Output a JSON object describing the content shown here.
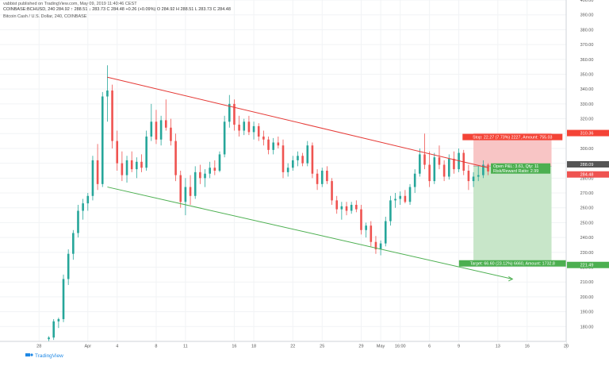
{
  "header": {
    "published_line": "vabbist published on TradingView.com, May 09, 2019 11:40:46 CEST",
    "ohlc_line": "COINBASE:BCHUSD, 240  284.92  ↑ 288.51  ↓ 283.73  C 284.48  +0.26 (+0.09%)  O 284.92  H 288.51  L 283.73  C 284.48",
    "instrument_line": "Bitcoin Cash / U.S. Dollar, 240, COINBASE"
  },
  "footer": {
    "brand": "TradingView"
  },
  "colors": {
    "up": "#26a69a",
    "down": "#ef5350",
    "resistance": "#e53935",
    "support": "#4caf50",
    "stop_zone": "#f8c5c5",
    "target_zone": "#c8e6c9",
    "stop_label": "#f44336",
    "target_label": "#4caf50",
    "last_price": "#ef5350",
    "open_price": "#555555"
  },
  "chart_data": {
    "type": "candlestick",
    "ylim": [
      170,
      400
    ],
    "y_ticks": [
      180,
      190,
      200,
      210,
      220,
      230,
      240,
      250,
      260,
      270,
      280,
      290,
      300,
      310,
      320,
      330,
      340,
      350,
      360,
      370,
      380,
      390,
      400
    ],
    "x_ticks": [
      {
        "label": "28",
        "day": -4
      },
      {
        "label": "Apr",
        "day": 1
      },
      {
        "label": "4",
        "day": 4
      },
      {
        "label": "8",
        "day": 8
      },
      {
        "label": "11",
        "day": 11
      },
      {
        "label": "16",
        "day": 16
      },
      {
        "label": "18",
        "day": 18
      },
      {
        "label": "22",
        "day": 22
      },
      {
        "label": "25",
        "day": 25
      },
      {
        "label": "29",
        "day": 29
      },
      {
        "label": "May",
        "day": 31
      },
      {
        "label": "16:00",
        "day": 33
      },
      {
        "label": "6",
        "day": 36
      },
      {
        "label": "9",
        "day": 39
      },
      {
        "label": "13",
        "day": 43
      },
      {
        "label": "16",
        "day": 46
      },
      {
        "label": "20",
        "day": 50
      }
    ],
    "x_range": [
      -8,
      50
    ],
    "trendlines": [
      {
        "role": "resistance",
        "from": {
          "day": 3.0,
          "price": 348
        },
        "to": {
          "day": 42.0,
          "price": 287
        }
      },
      {
        "role": "support",
        "from": {
          "day": 3.0,
          "price": 274
        },
        "to": {
          "day": 44.5,
          "price": 212
        }
      }
    ],
    "position": {
      "start_day": 40.5,
      "end_day": 48.5,
      "entry": 288.09,
      "stop": 310.36,
      "target": 221.49,
      "stop_label": "Stop: 22.27 (7.73%) 2227, Amount: 755.03",
      "target_label": "Target: 66.60 (23.12%) 6660, Amount: 1732.8",
      "pnl_label": "Open P&L: 3.61, Qty: 11",
      "ratio_label": "Risk/Reward Ratio: 2.99"
    },
    "price_labels": {
      "stop": "310.36",
      "entry": "288.09",
      "last": "284.48",
      "target": "221.49"
    },
    "candles": [
      {
        "t": -3.0,
        "o": 171.5,
        "h": 173.5,
        "l": 168.5,
        "c": 172.6
      },
      {
        "t": -2.5,
        "o": 172.6,
        "h": 185.0,
        "l": 171.0,
        "c": 183.5
      },
      {
        "t": -2.0,
        "o": 183.5,
        "h": 186.0,
        "l": 179.0,
        "c": 185.0
      },
      {
        "t": -1.5,
        "o": 185.0,
        "h": 215.0,
        "l": 183.0,
        "c": 212.0
      },
      {
        "t": -1.0,
        "o": 212.0,
        "h": 232.0,
        "l": 208.0,
        "c": 229.0
      },
      {
        "t": -0.5,
        "o": 229.0,
        "h": 245.0,
        "l": 225.0,
        "c": 243.0
      },
      {
        "t": 0.0,
        "o": 243.0,
        "h": 262.0,
        "l": 240.0,
        "c": 258.0
      },
      {
        "t": 0.5,
        "o": 258.0,
        "h": 266.0,
        "l": 252.0,
        "c": 263.0
      },
      {
        "t": 1.0,
        "o": 263.0,
        "h": 270.0,
        "l": 258.0,
        "c": 268.0
      },
      {
        "t": 1.5,
        "o": 268.0,
        "h": 295.0,
        "l": 265.0,
        "c": 292.0
      },
      {
        "t": 2.0,
        "o": 292.0,
        "h": 303.0,
        "l": 272.0,
        "c": 276.0
      },
      {
        "t": 2.5,
        "o": 276.0,
        "h": 338.0,
        "l": 274.0,
        "c": 335.0
      },
      {
        "t": 3.0,
        "o": 335.0,
        "h": 356.0,
        "l": 318.0,
        "c": 339.0
      },
      {
        "t": 3.5,
        "o": 339.0,
        "h": 343.0,
        "l": 300.0,
        "c": 305.0
      },
      {
        "t": 4.0,
        "o": 305.0,
        "h": 312.0,
        "l": 285.0,
        "c": 290.0
      },
      {
        "t": 4.5,
        "o": 290.0,
        "h": 298.0,
        "l": 278.0,
        "c": 282.0
      },
      {
        "t": 5.0,
        "o": 282.0,
        "h": 295.0,
        "l": 277.0,
        "c": 292.0
      },
      {
        "t": 5.5,
        "o": 292.0,
        "h": 298.0,
        "l": 284.0,
        "c": 286.0
      },
      {
        "t": 6.0,
        "o": 286.0,
        "h": 294.0,
        "l": 280.0,
        "c": 291.0
      },
      {
        "t": 6.5,
        "o": 291.0,
        "h": 296.0,
        "l": 284.0,
        "c": 287.0
      },
      {
        "t": 7.0,
        "o": 287.0,
        "h": 312.0,
        "l": 285.0,
        "c": 308.0
      },
      {
        "t": 7.5,
        "o": 308.0,
        "h": 330.0,
        "l": 305.0,
        "c": 318.0
      },
      {
        "t": 8.0,
        "o": 318.0,
        "h": 326.0,
        "l": 303.0,
        "c": 306.0
      },
      {
        "t": 8.5,
        "o": 306.0,
        "h": 322.0,
        "l": 302.0,
        "c": 319.0
      },
      {
        "t": 9.0,
        "o": 319.0,
        "h": 333.0,
        "l": 312.0,
        "c": 314.0
      },
      {
        "t": 9.5,
        "o": 314.0,
        "h": 320.0,
        "l": 302.0,
        "c": 305.0
      },
      {
        "t": 10.0,
        "o": 305.0,
        "h": 310.0,
        "l": 278.0,
        "c": 282.0
      },
      {
        "t": 10.5,
        "o": 282.0,
        "h": 285.0,
        "l": 260.0,
        "c": 264.0
      },
      {
        "t": 11.0,
        "o": 264.0,
        "h": 280.0,
        "l": 255.0,
        "c": 274.0
      },
      {
        "t": 11.5,
        "o": 274.0,
        "h": 282.0,
        "l": 262.0,
        "c": 268.0
      },
      {
        "t": 12.0,
        "o": 268.0,
        "h": 288.0,
        "l": 266.0,
        "c": 284.0
      },
      {
        "t": 12.5,
        "o": 284.0,
        "h": 289.0,
        "l": 276.0,
        "c": 280.0
      },
      {
        "t": 13.0,
        "o": 280.0,
        "h": 286.0,
        "l": 274.0,
        "c": 283.0
      },
      {
        "t": 13.5,
        "o": 283.0,
        "h": 291.0,
        "l": 280.0,
        "c": 287.0
      },
      {
        "t": 14.0,
        "o": 287.0,
        "h": 292.0,
        "l": 282.0,
        "c": 285.0
      },
      {
        "t": 14.5,
        "o": 285.0,
        "h": 298.0,
        "l": 284.0,
        "c": 296.0
      },
      {
        "t": 15.0,
        "o": 296.0,
        "h": 322.0,
        "l": 294.0,
        "c": 318.0
      },
      {
        "t": 15.5,
        "o": 318.0,
        "h": 336.0,
        "l": 314.0,
        "c": 330.0
      },
      {
        "t": 16.0,
        "o": 330.0,
        "h": 333.0,
        "l": 312.0,
        "c": 316.0
      },
      {
        "t": 16.5,
        "o": 316.0,
        "h": 322.0,
        "l": 308.0,
        "c": 312.0
      },
      {
        "t": 17.0,
        "o": 312.0,
        "h": 320.0,
        "l": 309.0,
        "c": 318.0
      },
      {
        "t": 17.5,
        "o": 318.0,
        "h": 322.0,
        "l": 309.0,
        "c": 311.0
      },
      {
        "t": 18.0,
        "o": 311.0,
        "h": 318.0,
        "l": 306.0,
        "c": 315.0
      },
      {
        "t": 18.5,
        "o": 315.0,
        "h": 317.0,
        "l": 305.0,
        "c": 308.0
      },
      {
        "t": 19.0,
        "o": 308.0,
        "h": 312.0,
        "l": 302.0,
        "c": 306.0
      },
      {
        "t": 19.5,
        "o": 306.0,
        "h": 308.0,
        "l": 296.0,
        "c": 299.0
      },
      {
        "t": 20.0,
        "o": 299.0,
        "h": 307.0,
        "l": 296.0,
        "c": 304.0
      },
      {
        "t": 20.5,
        "o": 304.0,
        "h": 308.0,
        "l": 300.0,
        "c": 302.0
      },
      {
        "t": 21.0,
        "o": 302.0,
        "h": 306.0,
        "l": 280.0,
        "c": 284.0
      },
      {
        "t": 21.5,
        "o": 284.0,
        "h": 290.0,
        "l": 281.0,
        "c": 287.0
      },
      {
        "t": 22.0,
        "o": 287.0,
        "h": 295.0,
        "l": 285.0,
        "c": 292.0
      },
      {
        "t": 22.5,
        "o": 292.0,
        "h": 298.0,
        "l": 288.0,
        "c": 295.0
      },
      {
        "t": 23.0,
        "o": 295.0,
        "h": 297.0,
        "l": 288.0,
        "c": 290.0
      },
      {
        "t": 23.5,
        "o": 290.0,
        "h": 305.0,
        "l": 288.0,
        "c": 302.0
      },
      {
        "t": 24.0,
        "o": 302.0,
        "h": 304.0,
        "l": 280.0,
        "c": 283.0
      },
      {
        "t": 24.5,
        "o": 283.0,
        "h": 286.0,
        "l": 272.0,
        "c": 276.0
      },
      {
        "t": 25.0,
        "o": 276.0,
        "h": 287.0,
        "l": 274.0,
        "c": 285.0
      },
      {
        "t": 25.5,
        "o": 285.0,
        "h": 288.0,
        "l": 276.0,
        "c": 278.0
      },
      {
        "t": 26.0,
        "o": 278.0,
        "h": 280.0,
        "l": 262.0,
        "c": 265.0
      },
      {
        "t": 26.5,
        "o": 265.0,
        "h": 268.0,
        "l": 256.0,
        "c": 259.0
      },
      {
        "t": 27.0,
        "o": 259.0,
        "h": 264.0,
        "l": 252.0,
        "c": 261.0
      },
      {
        "t": 27.5,
        "o": 261.0,
        "h": 264.0,
        "l": 255.0,
        "c": 258.0
      },
      {
        "t": 28.0,
        "o": 258.0,
        "h": 264.0,
        "l": 256.0,
        "c": 262.0
      },
      {
        "t": 28.5,
        "o": 262.0,
        "h": 265.0,
        "l": 257.0,
        "c": 259.0
      },
      {
        "t": 29.0,
        "o": 259.0,
        "h": 262.0,
        "l": 242.0,
        "c": 245.0
      },
      {
        "t": 29.5,
        "o": 245.0,
        "h": 250.0,
        "l": 240.0,
        "c": 248.0
      },
      {
        "t": 30.0,
        "o": 248.0,
        "h": 251.0,
        "l": 234.0,
        "c": 237.0
      },
      {
        "t": 30.5,
        "o": 237.0,
        "h": 241.0,
        "l": 229.0,
        "c": 232.0
      },
      {
        "t": 31.0,
        "o": 232.0,
        "h": 238.0,
        "l": 228.0,
        "c": 236.0
      },
      {
        "t": 31.5,
        "o": 236.0,
        "h": 254.0,
        "l": 234.0,
        "c": 251.0
      },
      {
        "t": 32.0,
        "o": 251.0,
        "h": 268.0,
        "l": 248.0,
        "c": 265.0
      },
      {
        "t": 32.5,
        "o": 265.0,
        "h": 270.0,
        "l": 260.0,
        "c": 266.0
      },
      {
        "t": 33.0,
        "o": 266.0,
        "h": 271.0,
        "l": 262.0,
        "c": 268.0
      },
      {
        "t": 33.5,
        "o": 268.0,
        "h": 272.0,
        "l": 263.0,
        "c": 264.0
      },
      {
        "t": 34.0,
        "o": 264.0,
        "h": 276.0,
        "l": 262.0,
        "c": 274.0
      },
      {
        "t": 34.5,
        "o": 274.0,
        "h": 286.0,
        "l": 270.0,
        "c": 283.0
      },
      {
        "t": 35.0,
        "o": 283.0,
        "h": 300.0,
        "l": 281.0,
        "c": 296.0
      },
      {
        "t": 35.5,
        "o": 296.0,
        "h": 310.0,
        "l": 286.0,
        "c": 289.0
      },
      {
        "t": 36.0,
        "o": 289.0,
        "h": 298.0,
        "l": 274.0,
        "c": 278.0
      },
      {
        "t": 36.5,
        "o": 278.0,
        "h": 297.0,
        "l": 276.0,
        "c": 294.0
      },
      {
        "t": 37.0,
        "o": 294.0,
        "h": 302.0,
        "l": 286.0,
        "c": 289.0
      },
      {
        "t": 37.5,
        "o": 289.0,
        "h": 292.0,
        "l": 278.0,
        "c": 281.0
      },
      {
        "t": 38.0,
        "o": 281.0,
        "h": 296.0,
        "l": 279.0,
        "c": 293.0
      },
      {
        "t": 38.5,
        "o": 293.0,
        "h": 298.0,
        "l": 283.0,
        "c": 286.0
      },
      {
        "t": 39.0,
        "o": 286.0,
        "h": 300.0,
        "l": 284.0,
        "c": 297.0
      },
      {
        "t": 39.5,
        "o": 297.0,
        "h": 299.0,
        "l": 282.0,
        "c": 285.0
      },
      {
        "t": 40.0,
        "o": 285.0,
        "h": 289.0,
        "l": 272.0,
        "c": 278.0
      },
      {
        "t": 40.5,
        "o": 278.0,
        "h": 284.0,
        "l": 274.0,
        "c": 281.0
      },
      {
        "t": 41.0,
        "o": 281.0,
        "h": 288.0,
        "l": 278.0,
        "c": 282.0
      },
      {
        "t": 41.5,
        "o": 282.0,
        "h": 292.0,
        "l": 280.0,
        "c": 289.0
      },
      {
        "t": 42.0,
        "o": 289.0,
        "h": 290.0,
        "l": 282.0,
        "c": 284.5
      }
    ]
  }
}
